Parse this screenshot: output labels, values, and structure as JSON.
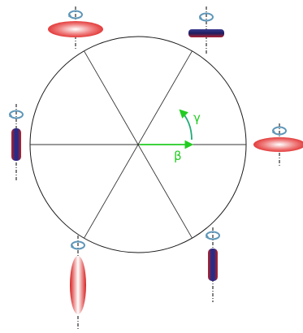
{
  "diagram": {
    "labels": {
      "gamma": "γ",
      "beta": "β"
    },
    "colors": {
      "arrow": "#22cc22",
      "circle": "#1a1a1a",
      "spokes": "#333333",
      "axis": "#000000",
      "rotation_icon": "#7fb0cc",
      "red_disc": "#e83030",
      "blue_disc": "#2a2a7a"
    },
    "diagram_type": "hexagonal sector wheel with six rotating-disc orientations around the rim"
  }
}
